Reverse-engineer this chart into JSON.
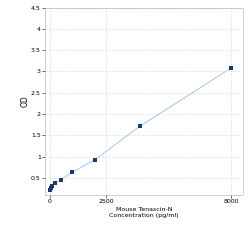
{
  "x_values": [
    0,
    62.5,
    125,
    250,
    500,
    1000,
    2000,
    4000,
    8000
  ],
  "y_values": [
    0.223,
    0.257,
    0.313,
    0.38,
    0.46,
    0.63,
    0.93,
    1.72,
    3.08
  ],
  "line_color": "#aecde8",
  "marker_color": "#1a3a6a",
  "marker_size": 3.5,
  "xlabel_line1": "2500",
  "xlabel_line2": "Mouse Tenascin-N",
  "xlabel_line3": "Concentration (pg/ml)",
  "ylabel": "OD",
  "xlim": [
    -200,
    8500
  ],
  "ylim": [
    0.1,
    4.5
  ],
  "yticks": [
    0.5,
    1.0,
    1.5,
    2.0,
    2.5,
    3.0,
    3.5,
    4.0,
    4.5
  ],
  "ytick_labels": [
    "0.5",
    "1",
    "1.5",
    "2",
    "2.5",
    "3",
    "3.5",
    "4",
    "4.5"
  ],
  "xtick_positions": [
    0,
    2500,
    8000
  ],
  "xtick_labels": [
    "0",
    "2500",
    "8000"
  ],
  "grid_color": "#cccccc",
  "bg_color": "#ffffff",
  "font_size_label": 4.5,
  "font_size_tick": 4.5
}
